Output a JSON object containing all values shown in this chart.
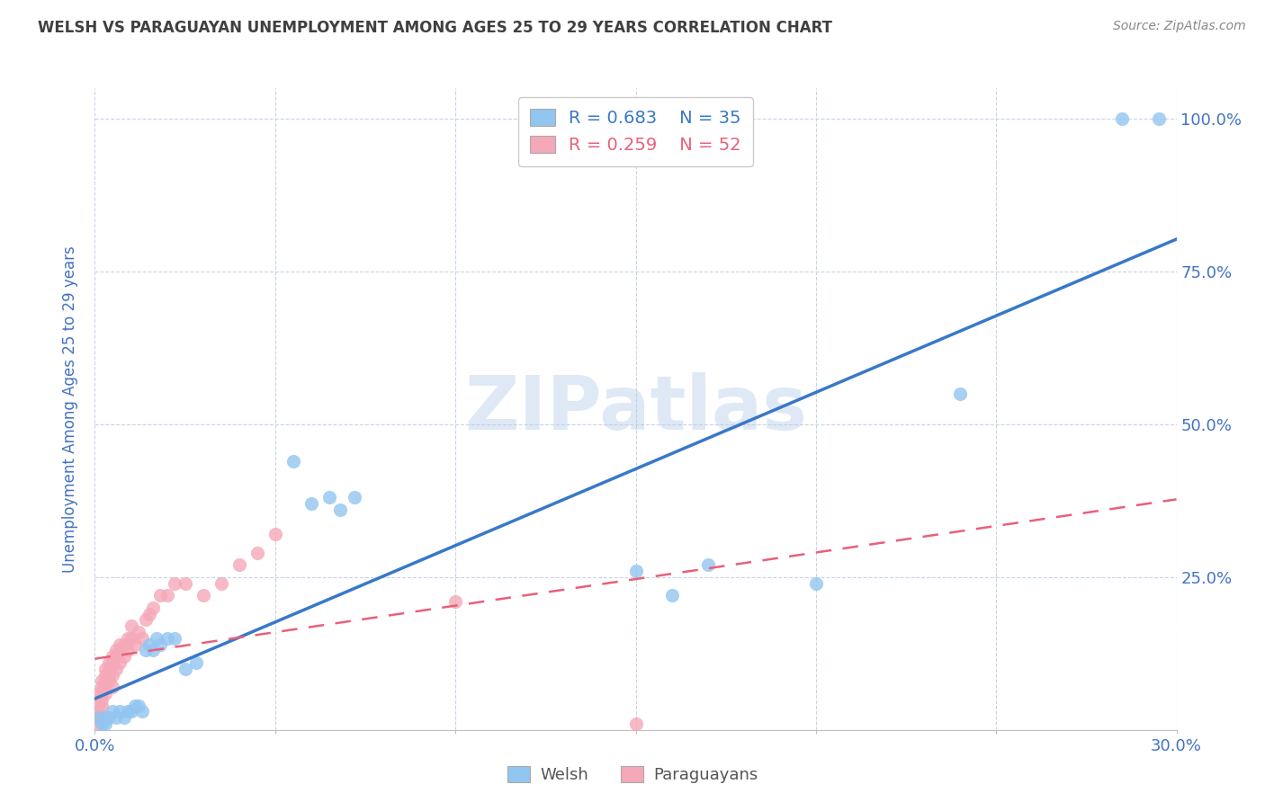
{
  "title": "WELSH VS PARAGUAYAN UNEMPLOYMENT AMONG AGES 25 TO 29 YEARS CORRELATION CHART",
  "source": "Source: ZipAtlas.com",
  "ylabel": "Unemployment Among Ages 25 to 29 years",
  "x_min": 0.0,
  "x_max": 0.3,
  "y_min": 0.0,
  "y_max": 1.05,
  "x_ticks": [
    0.0,
    0.05,
    0.1,
    0.15,
    0.2,
    0.25,
    0.3
  ],
  "x_tick_labels": [
    "0.0%",
    "",
    "",
    "",
    "",
    "",
    "30.0%"
  ],
  "y_ticks": [
    0.0,
    0.25,
    0.5,
    0.75,
    1.0
  ],
  "y_tick_labels": [
    "",
    "25.0%",
    "50.0%",
    "75.0%",
    "100.0%"
  ],
  "welsh_R": 0.683,
  "welsh_N": 35,
  "paraguayan_R": 0.259,
  "paraguayan_N": 52,
  "welsh_color": "#92c5f0",
  "paraguayan_color": "#f5a8b8",
  "welsh_line_color": "#3878c8",
  "paraguayan_line_color": "#e8607a",
  "background_color": "#ffffff",
  "grid_color": "#c8d4e8",
  "label_color": "#4472c4",
  "title_color": "#404040",
  "source_color": "#888888",
  "watermark": "ZIPatlas",
  "welsh_label": "Welsh",
  "paraguayan_label": "Paraguayans",
  "welsh_x": [
    0.001,
    0.002,
    0.003,
    0.003,
    0.004,
    0.005,
    0.006,
    0.007,
    0.008,
    0.009,
    0.01,
    0.011,
    0.012,
    0.013,
    0.014,
    0.015,
    0.016,
    0.017,
    0.018,
    0.02,
    0.022,
    0.025,
    0.028,
    0.055,
    0.06,
    0.065,
    0.068,
    0.072,
    0.15,
    0.16,
    0.17,
    0.2,
    0.24,
    0.285,
    0.295
  ],
  "welsh_y": [
    0.02,
    0.01,
    0.02,
    0.01,
    0.02,
    0.03,
    0.02,
    0.03,
    0.02,
    0.03,
    0.03,
    0.04,
    0.04,
    0.03,
    0.13,
    0.14,
    0.13,
    0.15,
    0.14,
    0.15,
    0.15,
    0.1,
    0.11,
    0.44,
    0.37,
    0.38,
    0.36,
    0.38,
    0.26,
    0.22,
    0.27,
    0.24,
    0.55,
    1.0,
    1.0
  ],
  "paraguayan_x": [
    0.001,
    0.001,
    0.001,
    0.001,
    0.001,
    0.002,
    0.002,
    0.002,
    0.002,
    0.002,
    0.003,
    0.003,
    0.003,
    0.003,
    0.003,
    0.004,
    0.004,
    0.004,
    0.004,
    0.005,
    0.005,
    0.005,
    0.005,
    0.006,
    0.006,
    0.006,
    0.007,
    0.007,
    0.007,
    0.008,
    0.008,
    0.009,
    0.009,
    0.01,
    0.01,
    0.011,
    0.012,
    0.013,
    0.014,
    0.015,
    0.016,
    0.018,
    0.02,
    0.022,
    0.025,
    0.03,
    0.035,
    0.04,
    0.045,
    0.05,
    0.1,
    0.15
  ],
  "paraguayan_y": [
    0.01,
    0.02,
    0.04,
    0.06,
    0.03,
    0.04,
    0.06,
    0.05,
    0.07,
    0.08,
    0.06,
    0.08,
    0.09,
    0.1,
    0.07,
    0.08,
    0.1,
    0.09,
    0.11,
    0.07,
    0.09,
    0.11,
    0.12,
    0.1,
    0.12,
    0.13,
    0.11,
    0.13,
    0.14,
    0.12,
    0.14,
    0.13,
    0.15,
    0.15,
    0.17,
    0.14,
    0.16,
    0.15,
    0.18,
    0.19,
    0.2,
    0.22,
    0.22,
    0.24,
    0.24,
    0.22,
    0.24,
    0.27,
    0.29,
    0.32,
    0.21,
    0.01
  ]
}
